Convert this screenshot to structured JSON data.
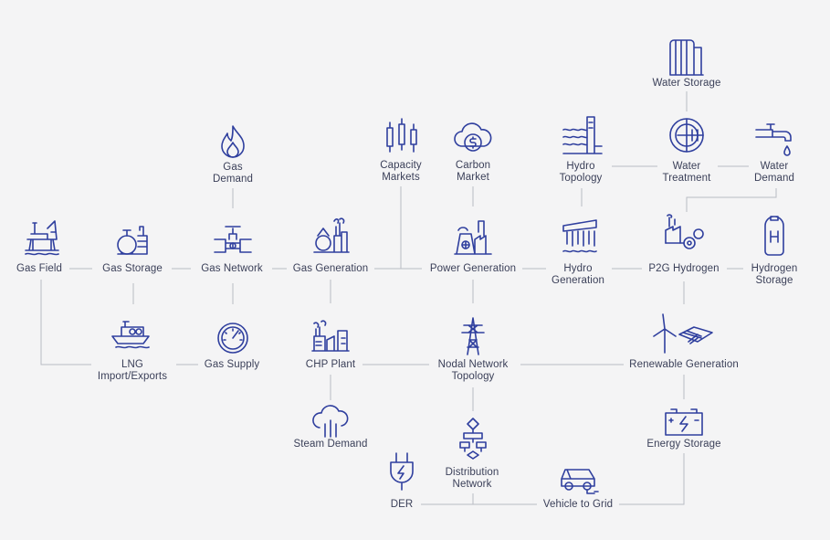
{
  "colors": {
    "background": "#f4f4f5",
    "icon": "#2f3f9e",
    "text": "#3a3f58",
    "line": "#b9bbc4"
  },
  "nodes": {
    "gas_field": {
      "label": "Gas Field",
      "icon": "offshore-platform-icon"
    },
    "gas_storage": {
      "label": "Gas Storage",
      "icon": "gas-tanks-icon"
    },
    "gas_network": {
      "label": "Gas Network",
      "icon": "pipe-valve-icon"
    },
    "gas_generation": {
      "label": "Gas Generation",
      "icon": "gas-plant-icon"
    },
    "gas_demand": {
      "label": "Gas\nDemand",
      "icon": "flame-icon"
    },
    "lng": {
      "label": "LNG\nImport/Exports",
      "icon": "lng-ship-icon"
    },
    "gas_supply": {
      "label": "Gas Supply",
      "icon": "gauge-icon"
    },
    "chp_plant": {
      "label": "CHP Plant",
      "icon": "factory-icon"
    },
    "steam_demand": {
      "label": "Steam Demand",
      "icon": "steam-cloud-icon"
    },
    "capacity_markets": {
      "label": "Capacity\nMarkets",
      "icon": "candlestick-icon"
    },
    "carbon_market": {
      "label": "Carbon\nMarket",
      "icon": "dollar-cloud-icon"
    },
    "power_generation": {
      "label": "Power Generation",
      "icon": "power-plant-icon"
    },
    "nodal_network": {
      "label": "Nodal Network\nTopology",
      "icon": "transmission-tower-icon"
    },
    "distribution_network": {
      "label": "Distribution\nNetwork",
      "icon": "flowchart-icon"
    },
    "der": {
      "label": "DER",
      "icon": "electric-plug-icon"
    },
    "vehicle_to_grid": {
      "label": "Vehicle to Grid",
      "icon": "electric-car-icon"
    },
    "hydro_topology": {
      "label": "Hydro\nTopology",
      "icon": "dam-waves-icon"
    },
    "hydro_generation": {
      "label": "Hydro\nGeneration",
      "icon": "dam-spillway-icon"
    },
    "water_storage": {
      "label": "Water Storage",
      "icon": "water-tank-icon"
    },
    "water_treatment": {
      "label": "Water\nTreatment",
      "icon": "treatment-wheel-icon"
    },
    "water_demand": {
      "label": "Water\nDemand",
      "icon": "water-tap-icon"
    },
    "p2g_hydrogen": {
      "label": "P2G Hydrogen",
      "icon": "hydrogen-factory-icon"
    },
    "hydrogen_storage": {
      "label": "Hydrogen\nStorage",
      "icon": "hydrogen-cylinder-icon"
    },
    "renewable_generation": {
      "label": "Renewable Generation",
      "icon": "wind-solar-icon"
    },
    "energy_storage": {
      "label": "Energy Storage",
      "icon": "battery-icon"
    }
  }
}
